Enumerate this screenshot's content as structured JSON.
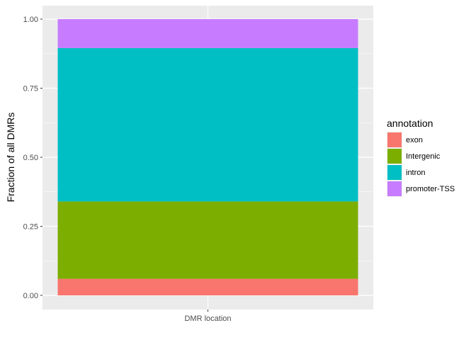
{
  "chart_data": {
    "type": "bar",
    "stacked": true,
    "categories": [
      "DMR location"
    ],
    "series": [
      {
        "name": "exon",
        "values": [
          0.06
        ],
        "color": "#F8766D"
      },
      {
        "name": "Intergenic",
        "values": [
          0.28
        ],
        "color": "#7CAE00"
      },
      {
        "name": "intron",
        "values": [
          0.555
        ],
        "color": "#00BFC4"
      },
      {
        "name": "promoter-TSS",
        "values": [
          0.105
        ],
        "color": "#C77CFF"
      }
    ],
    "xlabel": "",
    "ylabel": "Fraction of all DMRs",
    "ylim": [
      0,
      1
    ],
    "yticks": [
      "0.00",
      "0.25",
      "0.50",
      "0.75",
      "1.00"
    ],
    "legend_title": "annotation",
    "legend_position": "right",
    "grid": true,
    "panel_background": "#EBEBEB"
  }
}
